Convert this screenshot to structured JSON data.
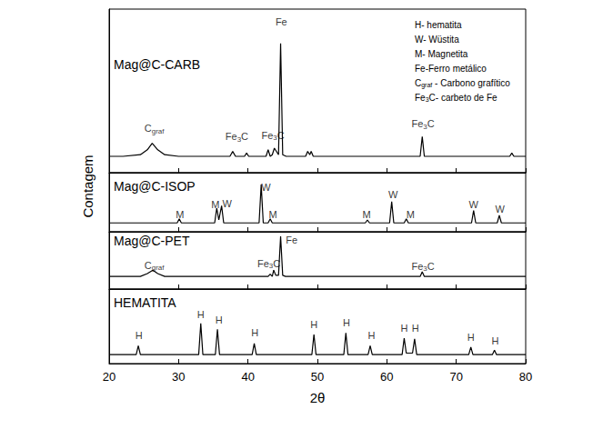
{
  "chart_data": {
    "type": "line",
    "x_label": "2θ",
    "y_label": "Contagem",
    "xlim": [
      20,
      80
    ],
    "xticks": [
      20,
      30,
      40,
      50,
      60,
      70,
      80
    ],
    "ylim": [
      0,
      100
    ],
    "tick_labels": "x",
    "grid": false,
    "key_text": [
      {
        "text": "H- hematita"
      },
      {
        "text": "W- Wüstita"
      },
      {
        "text": "M- Magnetita"
      },
      {
        "text": "Fe-Ferro metálico"
      },
      {
        "text": "C",
        "sub": "graf",
        "after": " - Carbono grafítico"
      },
      {
        "text": "Fe",
        "sub": "3",
        "after": "C- carbeto de Fe"
      }
    ],
    "series": [
      {
        "name": "Mag@C-CARB",
        "color": "#000000",
        "x": [
          20,
          22,
          24.5,
          25.5,
          26.2,
          27,
          28,
          30,
          33,
          35,
          37.4,
          37.8,
          38.2,
          39.5,
          39.8,
          40.1,
          42.6,
          42.9,
          43.2,
          43.5,
          43.8,
          44.4,
          44.7,
          45.0,
          45.5,
          48.3,
          48.6,
          48.9,
          49.1,
          49.4,
          52,
          55,
          58,
          61,
          64.8,
          65.1,
          65.4,
          68,
          71,
          74,
          77.7,
          78,
          78.3,
          80
        ],
        "values": [
          10,
          10,
          11,
          14,
          18,
          14,
          11,
          10,
          10,
          10,
          10,
          13,
          10,
          10,
          12,
          10,
          10,
          14,
          10,
          11,
          15,
          11,
          79,
          11,
          10,
          10,
          13,
          11,
          13,
          10,
          10,
          10,
          10,
          10,
          10,
          22,
          10,
          10,
          10,
          10,
          10,
          12,
          10,
          10
        ],
        "annotations": [
          {
            "text": "C",
            "sub": "graf",
            "x": 26.5,
            "y": 27
          },
          {
            "text": "Fe",
            "sub": "3",
            "after": "C",
            "x": 38.4,
            "y": 22
          },
          {
            "text": "Fe",
            "sub": "3",
            "after": "C",
            "x": 43.6,
            "y": 23
          },
          {
            "text": "Fe",
            "x": 44.8,
            "y": 92
          },
          {
            "text": "Fe",
            "sub": "3",
            "after": "C",
            "x": 65.2,
            "y": 30
          }
        ]
      },
      {
        "name": "Mag@C-ISOP",
        "color": "#000000",
        "x": [
          20,
          25,
          29.8,
          30.1,
          30.4,
          33,
          35.2,
          35.5,
          35.8,
          36.2,
          36.5,
          39,
          41.6,
          41.9,
          42.2,
          42.9,
          43.2,
          43.5,
          48,
          52,
          56.9,
          57.2,
          57.5,
          60.4,
          60.7,
          61.0,
          62.5,
          62.8,
          63.1,
          67,
          70,
          72.2,
          72.5,
          72.8,
          74,
          75.9,
          76.2,
          76.5,
          80
        ],
        "values": [
          15,
          15,
          15,
          22,
          15,
          15,
          15,
          40,
          20,
          44,
          15,
          15,
          15,
          80,
          15,
          15,
          22,
          15,
          15,
          15,
          15,
          20,
          15,
          15,
          51,
          15,
          15,
          22,
          15,
          15,
          15,
          15,
          36,
          15,
          15,
          15,
          28,
          15,
          15
        ],
        "annotations": [
          {
            "text": "M",
            "x": 30.2,
            "y": 30
          },
          {
            "text": "M",
            "x": 35.3,
            "y": 46
          },
          {
            "text": "W",
            "x": 37.0,
            "y": 48
          },
          {
            "text": "W",
            "x": 42.6,
            "y": 76
          },
          {
            "text": "M",
            "x": 43.6,
            "y": 30
          },
          {
            "text": "M",
            "x": 57.1,
            "y": 30
          },
          {
            "text": "W",
            "x": 60.9,
            "y": 63
          },
          {
            "text": "M",
            "x": 63.4,
            "y": 30
          },
          {
            "text": "W",
            "x": 72.5,
            "y": 46
          },
          {
            "text": "W",
            "x": 76.3,
            "y": 38
          }
        ]
      },
      {
        "name": "Mag@C-PET",
        "color": "#000000",
        "x": [
          20,
          24.5,
          25.5,
          26.3,
          27,
          28,
          32,
          36,
          40,
          42.9,
          43.2,
          43.5,
          43.7,
          44.0,
          44.4,
          44.7,
          45.0,
          45.4,
          50,
          55,
          60,
          64.8,
          65.1,
          65.4,
          70,
          75,
          80
        ],
        "values": [
          22,
          22,
          27,
          33,
          27,
          22,
          22,
          22,
          22,
          22,
          26,
          22,
          33,
          24,
          24,
          92,
          24,
          22,
          22,
          22,
          22,
          22,
          30,
          22,
          22,
          22,
          22
        ],
        "annotations": [
          {
            "text": "C",
            "sub": "graf",
            "x": 26.5,
            "y": 42
          },
          {
            "text": "Fe",
            "sub": "3",
            "after": "C",
            "x": 43.0,
            "y": 45
          },
          {
            "text": "Fe",
            "x": 46.3,
            "y": 86
          },
          {
            "text": "Fe",
            "sub": "3",
            "after": "C",
            "x": 65.2,
            "y": 40
          }
        ]
      },
      {
        "name": "HEMATITA",
        "color": "#000000",
        "x": [
          20,
          23.9,
          24.2,
          24.5,
          28,
          32.9,
          33.2,
          33.5,
          35.3,
          35.6,
          35.9,
          38,
          40.6,
          40.9,
          41.2,
          45,
          49.2,
          49.5,
          49.8,
          53.8,
          54.1,
          54.4,
          57.3,
          57.6,
          57.9,
          60,
          62.2,
          62.5,
          62.8,
          63.7,
          64.0,
          64.3,
          68,
          71.8,
          72.1,
          72.4,
          75.2,
          75.5,
          75.8,
          80
        ],
        "values": [
          12,
          12,
          24,
          12,
          12,
          12,
          54,
          12,
          12,
          46,
          12,
          12,
          12,
          27,
          12,
          12,
          12,
          39,
          12,
          12,
          41,
          12,
          12,
          24,
          12,
          12,
          12,
          34,
          14,
          14,
          33,
          12,
          12,
          12,
          22,
          12,
          12,
          18,
          12,
          12
        ],
        "annotations": [
          {
            "text": "H",
            "x": 24.3,
            "y": 38
          },
          {
            "text": "H",
            "x": 33.2,
            "y": 66
          },
          {
            "text": "H",
            "x": 35.8,
            "y": 58
          },
          {
            "text": "H",
            "x": 41.0,
            "y": 41
          },
          {
            "text": "H",
            "x": 49.5,
            "y": 52
          },
          {
            "text": "H",
            "x": 54.2,
            "y": 55
          },
          {
            "text": "H",
            "x": 57.8,
            "y": 38
          },
          {
            "text": "H",
            "x": 62.5,
            "y": 48
          },
          {
            "text": "H",
            "x": 64.1,
            "y": 48
          },
          {
            "text": "H",
            "x": 72.1,
            "y": 35
          },
          {
            "text": "H",
            "x": 75.6,
            "y": 31
          }
        ]
      }
    ]
  }
}
